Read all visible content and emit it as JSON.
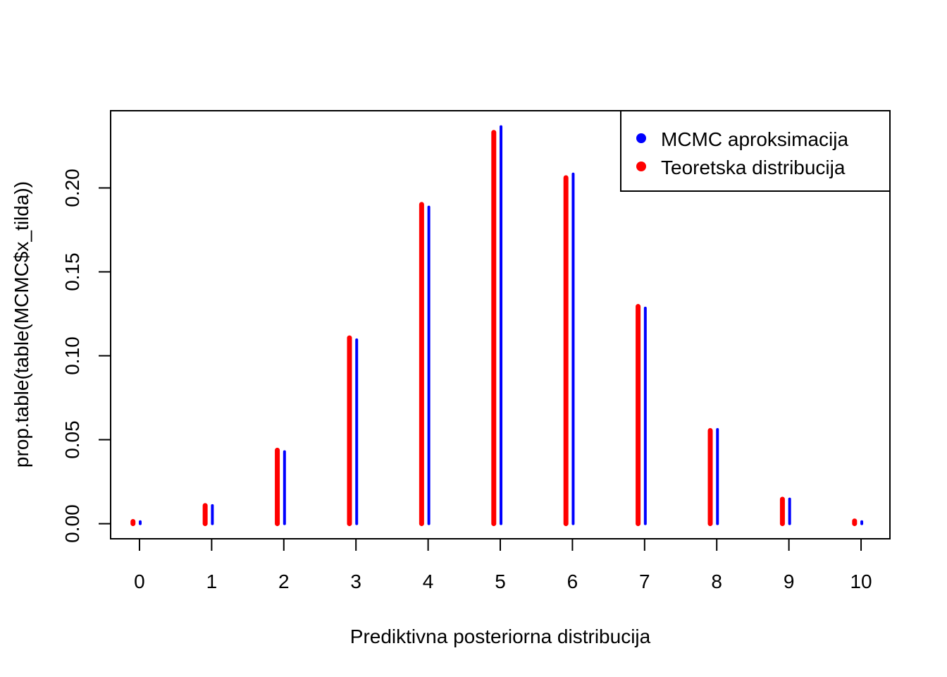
{
  "chart_data": {
    "type": "bar",
    "title": "",
    "xlabel": "Prediktivna posteriorna distribucija",
    "ylabel": "prop.table(table(MCMC$x_tilda))",
    "x": [
      0,
      1,
      2,
      3,
      4,
      5,
      6,
      7,
      8,
      9,
      10
    ],
    "xlim": [
      -0.4,
      10.4
    ],
    "ylim": [
      -0.009,
      0.246
    ],
    "yticks": [
      "0.00",
      "0.05",
      "0.10",
      "0.15",
      "0.20"
    ],
    "grid": false,
    "legend_position": "top-right",
    "series": [
      {
        "name": "MCMC aproksimacija",
        "color": "#0000FF",
        "values": [
          0.0012,
          0.0108,
          0.0429,
          0.1095,
          0.1886,
          0.2365,
          0.2083,
          0.1284,
          0.0561,
          0.0147,
          0.0012
        ]
      },
      {
        "name": "Teoretska distribucija",
        "color": "#FF0000",
        "values": [
          0.0013,
          0.0108,
          0.0438,
          0.1107,
          0.1902,
          0.2331,
          0.2061,
          0.1294,
          0.0555,
          0.0146,
          0.0016
        ]
      }
    ]
  }
}
